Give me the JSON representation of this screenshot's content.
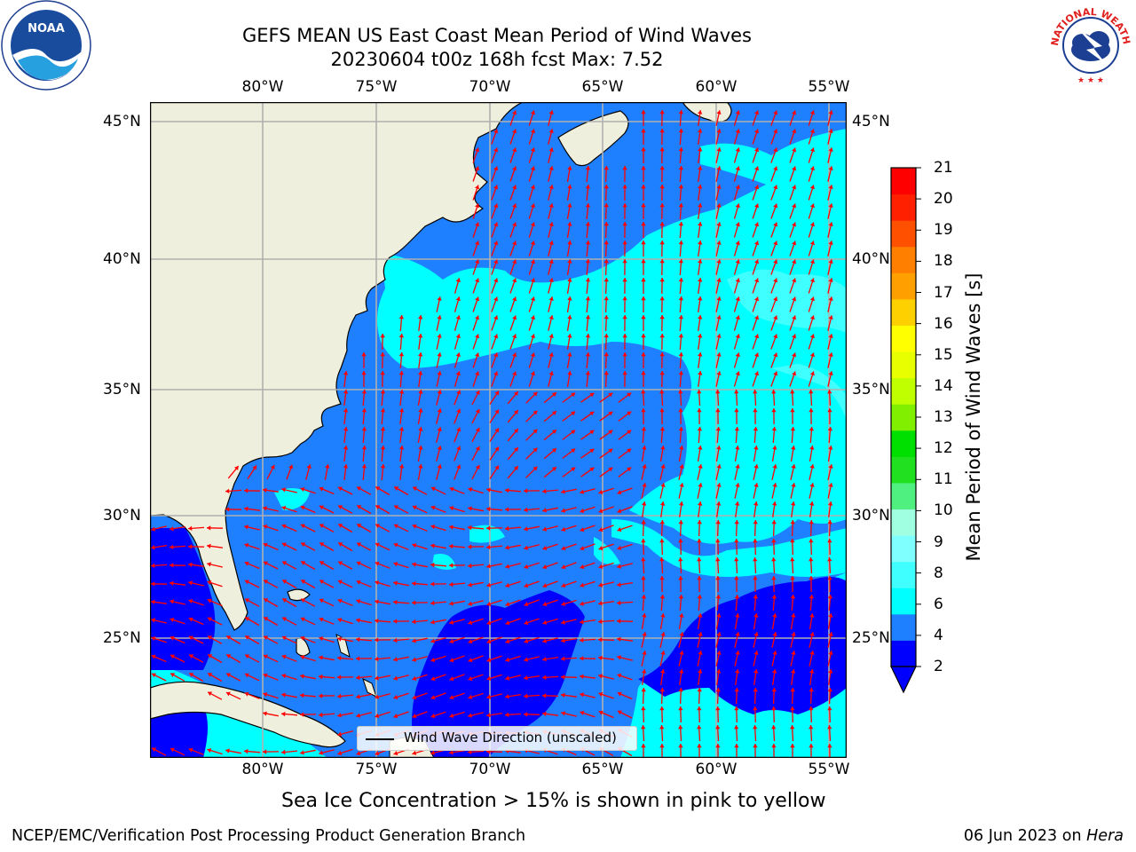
{
  "header": {
    "title_line1": "GEFS MEAN US East Coast Mean Period of Wind Waves",
    "title_line2": "20230604 t00z 168h fcst   Max: 7.52"
  },
  "map": {
    "lon_labels": [
      "80°W",
      "75°W",
      "70°W",
      "65°W",
      "60°W",
      "55°W"
    ],
    "lat_labels": [
      "45°N",
      "40°N",
      "35°N",
      "30°N",
      "25°N"
    ],
    "land_color": "#efefdd",
    "arrow_color": "#ff0000",
    "grid_color": "#b0b0b0"
  },
  "legend": {
    "label": "Wind Wave Direction (unscaled)"
  },
  "colorbar": {
    "title": "Mean Period of Wind Waves [s]",
    "ticks": [
      "2",
      "4",
      "6",
      "8",
      "9",
      "10",
      "11",
      "12",
      "13",
      "14",
      "15",
      "16",
      "17",
      "18",
      "19",
      "20",
      "21"
    ],
    "colors": [
      "#0000ff",
      "#1e7fff",
      "#00ffff",
      "#40ffff",
      "#80ffff",
      "#a0ffe0",
      "#50f080",
      "#20e020",
      "#00e000",
      "#80f000",
      "#c0ff00",
      "#e8ff00",
      "#ffff00",
      "#ffd000",
      "#ffa000",
      "#ff8000",
      "#ff5000",
      "#ff2000",
      "#ff0000"
    ]
  },
  "footer": {
    "note": "Sea Ice Concentration > 15% is shown in pink to yellow",
    "branch": "NCEP/EMC/Verification Post Processing Product Generation Branch",
    "date": "06 Jun 2023 on",
    "host": "Hera"
  },
  "logos": {
    "noaa_label": "NOAA",
    "nws_label": "NATIONAL WEATHER SERVICE"
  }
}
